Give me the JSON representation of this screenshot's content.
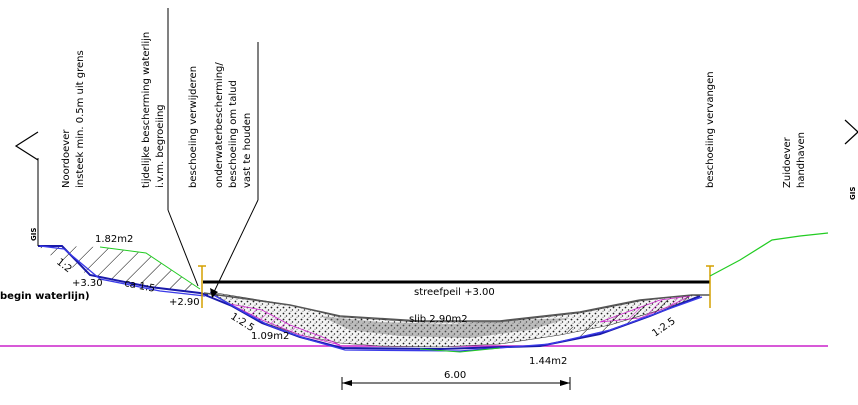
{
  "labels": {
    "noordoever": "Noordoever",
    "insteek": "insteek min. 0.5m uit grens",
    "tijdelijke": "tijdelijke bescherming waterlijn",
    "ivm": "i.v.m. begroeiing",
    "besch_verwijderen": "beschoeiing verwijderen",
    "onderwater": "onderwaterbescherming/",
    "besch_om_talud": "beschoeiing om talud",
    "vast": "vast te houden",
    "besch_vervangen": "beschoeiing vervangen",
    "zuidoever": "Zuidoever",
    "handhaven": "handhaven",
    "gis_left": "GIS",
    "gis_right": "GIS",
    "area_left": "1.82m2",
    "slope_1_2": "1:2",
    "level_330": "+3.30",
    "slope_ca": "ca 1:5",
    "begin_waterlijn": "begin waterlijn)",
    "level_290": "+2.90",
    "streefpeil": "streefpeil +3.00",
    "slope_125_left": "1:2.5",
    "area_109": "1.09m2",
    "slib": "slib 2.90m2",
    "area_144": "1.44m2",
    "slope_125_right": "1:2.5",
    "dim_600": "6.00"
  },
  "colors": {
    "profile_old": "#1a1aaa",
    "profile_new": "#3a3ae8",
    "bed_line": "#cc22cc",
    "ground": "#22cc22",
    "sheet_pile": "#d4a000",
    "water": "#000000",
    "excavation": "#cc22cc",
    "sludge_fill": "#888888"
  }
}
